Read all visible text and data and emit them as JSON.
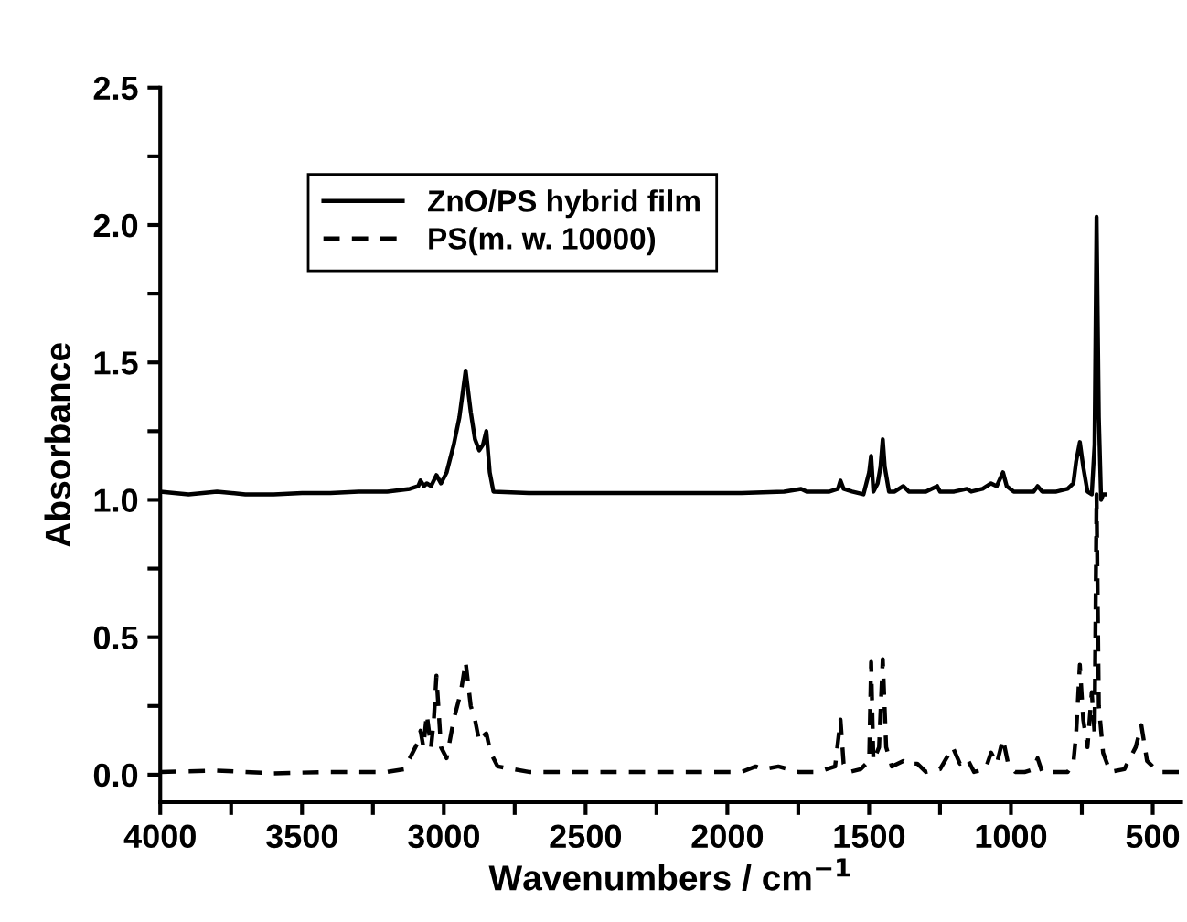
{
  "chart_data": {
    "type": "line",
    "xlabel": "Wavenumbers / cm$^{−1}$",
    "ylabel": "Absorbance",
    "xlim": [
      4000,
      400
    ],
    "ylim": [
      -0.1,
      2.5
    ],
    "xticks": [
      4000,
      {
        "value": 3750,
        "label": null
      },
      3500,
      {
        "value": 3250,
        "label": null
      },
      3000,
      {
        "value": 2750,
        "label": null
      },
      2500,
      {
        "value": 2250,
        "label": null
      },
      2000,
      {
        "value": 1750,
        "label": null
      },
      1500,
      {
        "value": 1250,
        "label": null
      },
      1000,
      {
        "value": 750,
        "label": null
      },
      500
    ],
    "yticks": [
      {
        "value": 0,
        "label": "0.0"
      },
      {
        "value": 0.25,
        "label": null
      },
      0.5,
      {
        "value": 0.75,
        "label": null
      },
      {
        "value": 1,
        "label": "1.0"
      },
      {
        "value": 1.25,
        "label": null
      },
      1.5,
      {
        "value": 1.75,
        "label": null
      },
      {
        "value": 2,
        "label": "2.0"
      },
      {
        "value": 2.25,
        "label": null
      },
      2.5
    ],
    "legend": "top left",
    "grid": false,
    "series": [
      {
        "name": "ZnO/PS hybrid film",
        "color": "#000000",
        "line_style": "solid",
        "x": [
          4000,
          3900,
          3800,
          3700,
          3600,
          3500,
          3400,
          3300,
          3200,
          3120,
          3090,
          3082,
          3070,
          3060,
          3045,
          3026,
          3010,
          2990,
          2965,
          2945,
          2923,
          2905,
          2890,
          2875,
          2862,
          2850,
          2838,
          2825,
          2700,
          2500,
          2300,
          2100,
          1950,
          1800,
          1740,
          1720,
          1700,
          1640,
          1610,
          1601,
          1590,
          1560,
          1520,
          1500,
          1493,
          1485,
          1470,
          1460,
          1452,
          1445,
          1430,
          1410,
          1380,
          1370,
          1360,
          1300,
          1260,
          1250,
          1200,
          1155,
          1140,
          1100,
          1070,
          1050,
          1028,
          1015,
          990,
          950,
          920,
          906,
          890,
          840,
          800,
          780,
          770,
          757,
          745,
          730,
          715,
          705,
          698,
          690,
          682,
          675,
          670
        ],
        "values": [
          1.03,
          1.02,
          1.03,
          1.02,
          1.02,
          1.025,
          1.025,
          1.03,
          1.03,
          1.04,
          1.05,
          1.07,
          1.05,
          1.06,
          1.05,
          1.09,
          1.06,
          1.1,
          1.2,
          1.3,
          1.47,
          1.32,
          1.22,
          1.18,
          1.2,
          1.25,
          1.1,
          1.03,
          1.025,
          1.025,
          1.025,
          1.025,
          1.025,
          1.03,
          1.04,
          1.03,
          1.03,
          1.03,
          1.04,
          1.07,
          1.04,
          1.03,
          1.02,
          1.1,
          1.16,
          1.03,
          1.06,
          1.12,
          1.22,
          1.12,
          1.03,
          1.03,
          1.05,
          1.04,
          1.03,
          1.03,
          1.05,
          1.03,
          1.03,
          1.04,
          1.03,
          1.04,
          1.06,
          1.05,
          1.1,
          1.05,
          1.03,
          1.03,
          1.03,
          1.05,
          1.03,
          1.03,
          1.04,
          1.06,
          1.14,
          1.21,
          1.12,
          1.03,
          1.02,
          1.2,
          2.03,
          1.3,
          1.0,
          1.02,
          1.02
        ]
      },
      {
        "name": "PS(m. w. 10000)",
        "color": "#000000",
        "line_style": "dashed",
        "x": [
          4000,
          3800,
          3600,
          3400,
          3200,
          3140,
          3110,
          3090,
          3082,
          3072,
          3060,
          3045,
          3035,
          3026,
          3010,
          2990,
          2965,
          2940,
          2923,
          2905,
          2890,
          2875,
          2862,
          2850,
          2835,
          2810,
          2700,
          2500,
          2300,
          2100,
          1950,
          1900,
          1870,
          1820,
          1750,
          1680,
          1620,
          1601,
          1590,
          1570,
          1530,
          1500,
          1493,
          1485,
          1465,
          1452,
          1440,
          1420,
          1380,
          1370,
          1330,
          1300,
          1250,
          1205,
          1180,
          1155,
          1130,
          1090,
          1070,
          1050,
          1028,
          1010,
          985,
          950,
          920,
          906,
          890,
          840,
          800,
          780,
          770,
          757,
          745,
          730,
          715,
          705,
          698,
          690,
          675,
          650,
          600,
          560,
          540,
          520,
          480,
          440,
          400
        ],
        "values": [
          0.01,
          0.015,
          0.005,
          0.01,
          0.01,
          0.02,
          0.08,
          0.12,
          0.16,
          0.1,
          0.22,
          0.1,
          0.2,
          0.36,
          0.1,
          0.06,
          0.2,
          0.3,
          0.41,
          0.25,
          0.2,
          0.12,
          0.14,
          0.15,
          0.08,
          0.03,
          0.01,
          0.01,
          0.01,
          0.01,
          0.01,
          0.03,
          0.02,
          0.03,
          0.01,
          0.01,
          0.03,
          0.2,
          0.04,
          0.01,
          0.02,
          0.05,
          0.41,
          0.05,
          0.1,
          0.42,
          0.1,
          0.03,
          0.05,
          0.04,
          0.04,
          0.01,
          0.02,
          0.1,
          0.04,
          0.06,
          0.01,
          0.02,
          0.08,
          0.04,
          0.13,
          0.04,
          0.01,
          0.01,
          0.02,
          0.06,
          0.01,
          0.01,
          0.01,
          0.04,
          0.15,
          0.4,
          0.2,
          0.1,
          0.3,
          0.15,
          1.02,
          0.25,
          0.08,
          0.01,
          0.02,
          0.1,
          0.18,
          0.05,
          0.01,
          0.01,
          0.01
        ]
      }
    ]
  }
}
